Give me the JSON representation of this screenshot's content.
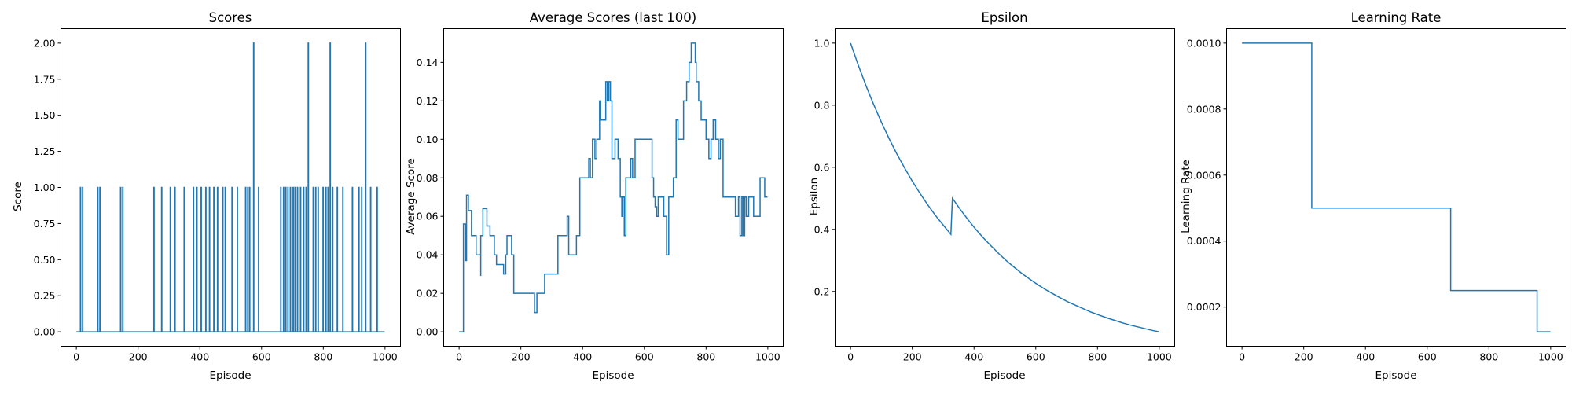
{
  "figure": {
    "background": "#ffffff",
    "line_color": "#1f77b4"
  },
  "chart_data": [
    {
      "type": "line",
      "title": "Scores",
      "xlabel": "Episode",
      "ylabel": "Score",
      "xlim": [
        -50,
        1050
      ],
      "ylim": [
        -0.1,
        2.1
      ],
      "xticks": [
        0,
        200,
        400,
        600,
        800,
        1000
      ],
      "yticks": [
        0.0,
        0.25,
        0.5,
        0.75,
        1.0,
        1.25,
        1.5,
        1.75,
        2.0
      ],
      "ytick_labels": [
        "0.00",
        "0.25",
        "0.50",
        "0.75",
        "1.00",
        "1.25",
        "1.50",
        "1.75",
        "2.00"
      ],
      "grid": false,
      "series": [
        {
          "kind": "spikes",
          "x_range": [
            0,
            999
          ],
          "baseline": 0,
          "spikes": [
            [
              14,
              1
            ],
            [
              21,
              1
            ],
            [
              70,
              1
            ],
            [
              77,
              1
            ],
            [
              144,
              1
            ],
            [
              151,
              1
            ],
            [
              252,
              1
            ],
            [
              277,
              1
            ],
            [
              305,
              1
            ],
            [
              320,
              1
            ],
            [
              350,
              1
            ],
            [
              380,
              1
            ],
            [
              391,
              1
            ],
            [
              405,
              1
            ],
            [
              420,
              1
            ],
            [
              432,
              1
            ],
            [
              446,
              1
            ],
            [
              458,
              1
            ],
            [
              475,
              1
            ],
            [
              483,
              1
            ],
            [
              505,
              1
            ],
            [
              522,
              1
            ],
            [
              549,
              1
            ],
            [
              556,
              1
            ],
            [
              562,
              1
            ],
            [
              575,
              2
            ],
            [
              591,
              1
            ],
            [
              663,
              1
            ],
            [
              672,
              1
            ],
            [
              679,
              1
            ],
            [
              686,
              1
            ],
            [
              694,
              1
            ],
            [
              703,
              1
            ],
            [
              709,
              1
            ],
            [
              717,
              1
            ],
            [
              727,
              1
            ],
            [
              737,
              1
            ],
            [
              745,
              1
            ],
            [
              752,
              2
            ],
            [
              768,
              1
            ],
            [
              776,
              1
            ],
            [
              784,
              1
            ],
            [
              800,
              1
            ],
            [
              809,
              1
            ],
            [
              816,
              1
            ],
            [
              823,
              2
            ],
            [
              831,
              1
            ],
            [
              846,
              1
            ],
            [
              864,
              1
            ],
            [
              895,
              1
            ],
            [
              916,
              1
            ],
            [
              925,
              1
            ],
            [
              938,
              2
            ],
            [
              954,
              1
            ],
            [
              975,
              1
            ]
          ]
        }
      ]
    },
    {
      "type": "line",
      "title": "Average Scores (last 100)",
      "xlabel": "Episode",
      "ylabel": "Average Score",
      "xlim": [
        -50,
        1050
      ],
      "ylim": [
        -0.0075,
        0.1575
      ],
      "xticks": [
        0,
        200,
        400,
        600,
        800,
        1000
      ],
      "yticks": [
        0.0,
        0.02,
        0.04,
        0.06,
        0.08,
        0.1,
        0.12,
        0.14
      ],
      "ytick_labels": [
        "0.00",
        "0.02",
        "0.04",
        "0.06",
        "0.08",
        "0.10",
        "0.12",
        "0.14"
      ],
      "grid": false,
      "series": [
        {
          "kind": "step",
          "points": [
            [
              0,
              0
            ],
            [
              14,
              0
            ],
            [
              14,
              0.056
            ],
            [
              21,
              0.056
            ],
            [
              21,
              0.037
            ],
            [
              24,
              0.071
            ],
            [
              30,
              0.063
            ],
            [
              40,
              0.05
            ],
            [
              55,
              0.04
            ],
            [
              70,
              0.029
            ],
            [
              70,
              0.05
            ],
            [
              75,
              0.05
            ],
            [
              77,
              0.064
            ],
            [
              90,
              0.055
            ],
            [
              100,
              0.05
            ],
            [
              114,
              0.05
            ],
            [
              114,
              0.04
            ],
            [
              121,
              0.04
            ],
            [
              121,
              0.035
            ],
            [
              144,
              0.035
            ],
            [
              144,
              0.03
            ],
            [
              151,
              0.03
            ],
            [
              151,
              0.04
            ],
            [
              155,
              0.05
            ],
            [
              170,
              0.05
            ],
            [
              170,
              0.04
            ],
            [
              177,
              0.04
            ],
            [
              177,
              0.02
            ],
            [
              244,
              0.02
            ],
            [
              244,
              0.01
            ],
            [
              252,
              0.01
            ],
            [
              252,
              0.02
            ],
            [
              277,
              0.02
            ],
            [
              277,
              0.03
            ],
            [
              305,
              0.03
            ],
            [
              320,
              0.03
            ],
            [
              320,
              0.05
            ],
            [
              350,
              0.05
            ],
            [
              350,
              0.06
            ],
            [
              355,
              0.04
            ],
            [
              380,
              0.04
            ],
            [
              380,
              0.05
            ],
            [
              391,
              0.05
            ],
            [
              391,
              0.08
            ],
            [
              420,
              0.08
            ],
            [
              420,
              0.09
            ],
            [
              425,
              0.08
            ],
            [
              432,
              0.1
            ],
            [
              440,
              0.09
            ],
            [
              446,
              0.1
            ],
            [
              455,
              0.12
            ],
            [
              458,
              0.11
            ],
            [
              470,
              0.11
            ],
            [
              475,
              0.13
            ],
            [
              480,
              0.12
            ],
            [
              485,
              0.13
            ],
            [
              490,
              0.12
            ],
            [
              495,
              0.09
            ],
            [
              500,
              0.09
            ],
            [
              505,
              0.1
            ],
            [
              515,
              0.09
            ],
            [
              522,
              0.07
            ],
            [
              527,
              0.06
            ],
            [
              530,
              0.07
            ],
            [
              535,
              0.05
            ],
            [
              540,
              0.08
            ],
            [
              549,
              0.08
            ],
            [
              556,
              0.09
            ],
            [
              562,
              0.08
            ],
            [
              570,
              0.1
            ],
            [
              575,
              0.1
            ],
            [
              591,
              0.1
            ],
            [
              600,
              0.1
            ],
            [
              610,
              0.1
            ],
            [
              620,
              0.1
            ],
            [
              625,
              0.08
            ],
            [
              630,
              0.07
            ],
            [
              635,
              0.065
            ],
            [
              640,
              0.06
            ],
            [
              645,
              0.07
            ],
            [
              655,
              0.07
            ],
            [
              663,
              0.06
            ],
            [
              672,
              0.04
            ],
            [
              679,
              0.07
            ],
            [
              686,
              0.07
            ],
            [
              694,
              0.08
            ],
            [
              703,
              0.11
            ],
            [
              709,
              0.1
            ],
            [
              717,
              0.1
            ],
            [
              727,
              0.12
            ],
            [
              737,
              0.13
            ],
            [
              745,
              0.14
            ],
            [
              752,
              0.15
            ],
            [
              760,
              0.15
            ],
            [
              765,
              0.14
            ],
            [
              768,
              0.13
            ],
            [
              776,
              0.12
            ],
            [
              784,
              0.11
            ],
            [
              790,
              0.11
            ],
            [
              800,
              0.1
            ],
            [
              809,
              0.09
            ],
            [
              816,
              0.1
            ],
            [
              823,
              0.11
            ],
            [
              831,
              0.1
            ],
            [
              840,
              0.09
            ],
            [
              846,
              0.1
            ],
            [
              855,
              0.07
            ],
            [
              864,
              0.07
            ],
            [
              880,
              0.07
            ],
            [
              895,
              0.06
            ],
            [
              905,
              0.07
            ],
            [
              910,
              0.05
            ],
            [
              916,
              0.07
            ],
            [
              920,
              0.05
            ],
            [
              925,
              0.07
            ],
            [
              930,
              0.06
            ],
            [
              938,
              0.07
            ],
            [
              954,
              0.06
            ],
            [
              960,
              0.06
            ],
            [
              975,
              0.08
            ],
            [
              985,
              0.08
            ],
            [
              990,
              0.07
            ],
            [
              999,
              0.07
            ]
          ]
        }
      ]
    },
    {
      "type": "line",
      "title": "Epsilon",
      "xlabel": "Episode",
      "ylabel": "Epsilon",
      "xlim": [
        -50,
        1050
      ],
      "ylim": [
        0.0235,
        1.0465
      ],
      "xticks": [
        0,
        200,
        400,
        600,
        800,
        1000
      ],
      "yticks": [
        0.2,
        0.4,
        0.6,
        0.8,
        1.0
      ],
      "ytick_labels": [
        "0.2",
        "0.4",
        "0.6",
        "0.8",
        "1.0"
      ],
      "grid": false,
      "series": [
        {
          "kind": "line",
          "points": [
            [
              0,
              1.0
            ],
            [
              25,
              0.929
            ],
            [
              50,
              0.863
            ],
            [
              75,
              0.802
            ],
            [
              100,
              0.745
            ],
            [
              125,
              0.692
            ],
            [
              150,
              0.643
            ],
            [
              175,
              0.598
            ],
            [
              200,
              0.555
            ],
            [
              225,
              0.516
            ],
            [
              250,
              0.479
            ],
            [
              275,
              0.445
            ],
            [
              300,
              0.414
            ],
            [
              325,
              0.384
            ],
            [
              325,
              0.384
            ],
            [
              330,
              0.5
            ],
            [
              355,
              0.465
            ],
            [
              380,
              0.432
            ],
            [
              405,
              0.401
            ],
            [
              430,
              0.373
            ],
            [
              455,
              0.347
            ],
            [
              480,
              0.322
            ],
            [
              505,
              0.299
            ],
            [
              530,
              0.278
            ],
            [
              555,
              0.258
            ],
            [
              580,
              0.24
            ],
            [
              605,
              0.223
            ],
            [
              630,
              0.207
            ],
            [
              655,
              0.193
            ],
            [
              680,
              0.179
            ],
            [
              705,
              0.166
            ],
            [
              730,
              0.155
            ],
            [
              755,
              0.144
            ],
            [
              780,
              0.133
            ],
            [
              805,
              0.124
            ],
            [
              830,
              0.115
            ],
            [
              855,
              0.107
            ],
            [
              880,
              0.099
            ],
            [
              905,
              0.092
            ],
            [
              930,
              0.086
            ],
            [
              955,
              0.08
            ],
            [
              980,
              0.074
            ],
            [
              999,
              0.07
            ]
          ]
        }
      ]
    },
    {
      "type": "line",
      "title": "Learning Rate",
      "xlabel": "Episode",
      "ylabel": "Learning Rate",
      "xlim": [
        -50,
        1050
      ],
      "ylim": [
        8.125e-05,
        0.00104375
      ],
      "xticks": [
        0,
        200,
        400,
        600,
        800,
        1000
      ],
      "yticks": [
        0.0002,
        0.0004,
        0.0006,
        0.0008,
        0.001
      ],
      "ytick_labels": [
        "0.0002",
        "0.0004",
        "0.0006",
        "0.0008",
        "0.0010"
      ],
      "grid": false,
      "series": [
        {
          "kind": "step",
          "points": [
            [
              0,
              0.001
            ],
            [
              226,
              0.001
            ],
            [
              226,
              0.0005
            ],
            [
              676,
              0.0005
            ],
            [
              676,
              0.00025
            ],
            [
              956,
              0.00025
            ],
            [
              956,
              0.000125
            ],
            [
              999,
              0.000125
            ]
          ]
        }
      ]
    }
  ]
}
